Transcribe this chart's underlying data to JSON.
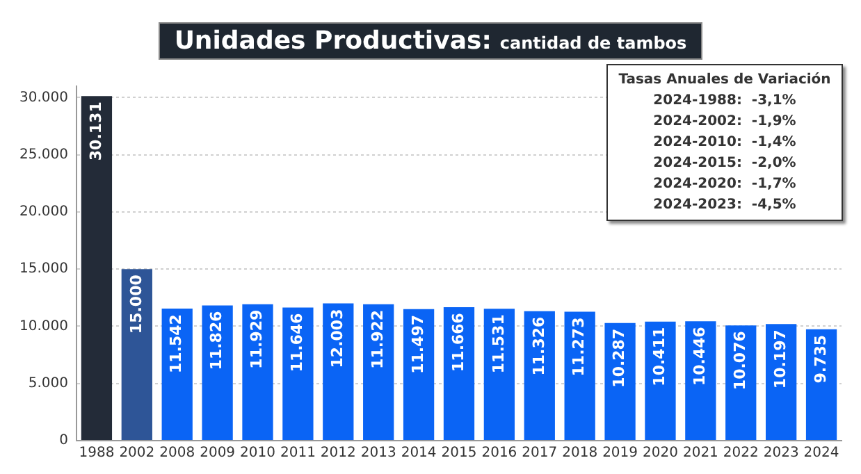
{
  "chart_data": {
    "type": "bar",
    "title": "Unidades Productivas:",
    "subtitle": "cantidad de tambos",
    "categories": [
      "1988",
      "2002",
      "2008",
      "2009",
      "2010",
      "2011",
      "2012",
      "2013",
      "2014",
      "2015",
      "2016",
      "2017",
      "2018",
      "2019",
      "2020",
      "2021",
      "2022",
      "2023",
      "2024"
    ],
    "values": [
      30131,
      15000,
      11542,
      11826,
      11929,
      11646,
      12003,
      11922,
      11497,
      11666,
      11531,
      11326,
      11273,
      10287,
      10411,
      10446,
      10076,
      10197,
      9735
    ],
    "value_labels": [
      "30.131",
      "15.000",
      "11.542",
      "11.826",
      "11.929",
      "11.646",
      "12.003",
      "11.922",
      "11.497",
      "11.666",
      "11.531",
      "11.326",
      "11.273",
      "10.287",
      "10.411",
      "10.446",
      "10.076",
      "10.197",
      "9.735"
    ],
    "colors": [
      "#232b38",
      "#2e5597",
      "#0a64f5",
      "#0a64f5",
      "#0a64f5",
      "#0a64f5",
      "#0a64f5",
      "#0a64f5",
      "#0a64f5",
      "#0a64f5",
      "#0a64f5",
      "#0a64f5",
      "#0a64f5",
      "#0a64f5",
      "#0a64f5",
      "#0a64f5",
      "#0a64f5",
      "#0a64f5",
      "#0a64f5"
    ],
    "ylim": [
      0,
      31000
    ],
    "yticks": [
      0,
      {
        "value": 5000,
        "label": "5.000"
      },
      {
        "value": 10000,
        "label": "10.000"
      },
      {
        "value": 15000,
        "label": "15.000"
      },
      {
        "value": 20000,
        "label": "20.000"
      },
      {
        "value": 25000,
        "label": "25.000"
      },
      {
        "value": 30000,
        "label": "30.000"
      }
    ],
    "grid": "y",
    "annotations": [
      "Tasas Anuales de Variación",
      "2024-1988:  -3,1%",
      "2024-2002:  -1,9%",
      "2024-2010:  -1,4%",
      "2024-2015:  -2,0%",
      "2024-2020:  -1,7%",
      "2024-2023:  -4,5%"
    ]
  }
}
